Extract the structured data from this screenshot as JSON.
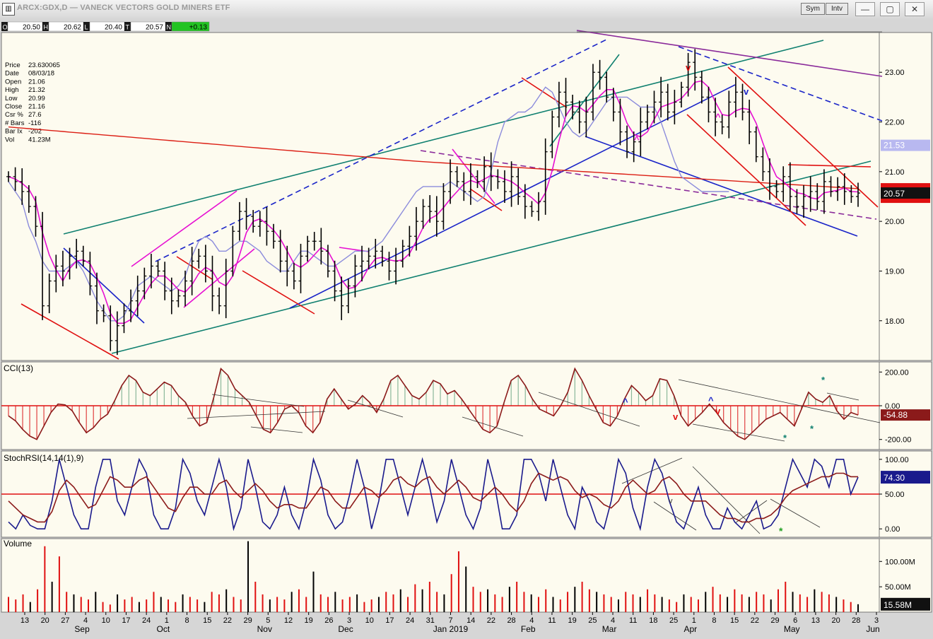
{
  "window": {
    "title": "ARCX:GDX,D — VANECK VECTORS GOLD MINERS ETF",
    "sym_label": "Sym",
    "intv_label": "Intv",
    "minimize_glyph": "—",
    "restore_glyph": "▢",
    "close_glyph": "✕"
  },
  "quote_bar": [
    {
      "key": "O",
      "value": "20.50"
    },
    {
      "key": "H",
      "value": "20.62"
    },
    {
      "key": "L",
      "value": "20.40"
    },
    {
      "key": "T",
      "value": "20.57"
    },
    {
      "key": "N",
      "value": "+0.13"
    }
  ],
  "data_window": [
    {
      "label": "Price",
      "value": "23.630065"
    },
    {
      "label": "Date",
      "value": "08/03/18"
    },
    {
      "label": "Open",
      "value": "21.06"
    },
    {
      "label": "High",
      "value": "21.32"
    },
    {
      "label": "Low",
      "value": "20.99"
    },
    {
      "label": "Close",
      "value": "21.16"
    },
    {
      "label": "Csr %",
      "value": "27.6"
    },
    {
      "label": "# Bars",
      "value": "-116"
    },
    {
      "label": "Bar Ix",
      "value": "-202"
    },
    {
      "label": "Vol",
      "value": "41.23M"
    }
  ],
  "colors": {
    "chart_bg": "#fdfbef",
    "price_bar": "#000000",
    "ma_short": "#e60fd2",
    "ma_mid": "#8c8cdc",
    "ma_long": "#dc1e14",
    "trend_red": "#e01010",
    "trend_blue": "#1a24c8",
    "trend_teal": "#108070",
    "trend_purple": "#8a2a9a",
    "cci_fill_pos": "#8ab89a",
    "cci_fill_neg": "#e04040",
    "cci_line": "#8b1a1a",
    "stoch_k": "#1a1a8c",
    "stoch_d": "#8b1a1a",
    "vol_up": "#000000",
    "vol_down": "#e01010",
    "quote_positive": "#22c322"
  },
  "chart_data": [
    {
      "type": "line",
      "panel": "price",
      "style": "ohlc_bars",
      "ylim": [
        17.2,
        23.8
      ],
      "yticks": [
        "18.00",
        "19.00",
        "20.00",
        "21.00",
        "22.00",
        "23.00"
      ],
      "ytick_values": [
        18,
        19,
        20,
        21,
        22,
        23
      ],
      "series": [
        {
          "name": "",
          "values": [
            20.9,
            20.8,
            20.6,
            20.3,
            19.9,
            18.3,
            18.8,
            19.1,
            19.0,
            19.3,
            19.4,
            19.2,
            18.7,
            18.2,
            18.1,
            17.6,
            17.9,
            18.2,
            18.4,
            18.6,
            18.9,
            19.1,
            19.0,
            18.6,
            18.4,
            18.5,
            18.8,
            19.2,
            19.3,
            19.0,
            18.5,
            18.3,
            19.0,
            19.8,
            20.2,
            20.1,
            19.9,
            20.0,
            19.8,
            19.6,
            19.2,
            19.0,
            18.8,
            19.3,
            19.6,
            19.6,
            19.4,
            19.0,
            18.6,
            18.3,
            18.7,
            19.1,
            19.2,
            19.3,
            19.4,
            19.2,
            19.0,
            19.2,
            19.5,
            19.7,
            20.0,
            20.3,
            20.2,
            20.0,
            20.6,
            21.0,
            20.8,
            20.6,
            20.9,
            20.8,
            21.1,
            20.9,
            20.8,
            20.6,
            20.9,
            20.5,
            20.3,
            20.2,
            20.4,
            21.4,
            22.1,
            22.6,
            22.4,
            22.2,
            22.0,
            22.2,
            23.0,
            22.9,
            22.5,
            22.2,
            21.8,
            21.4,
            21.6,
            22.0,
            22.2,
            22.4,
            22.6,
            22.2,
            22.4,
            22.7,
            23.2,
            22.9,
            22.5,
            22.2,
            22.0,
            21.9,
            22.4,
            22.6,
            22.2,
            21.8,
            21.3,
            21.0,
            20.7,
            20.6,
            20.9,
            20.5,
            20.3,
            20.5,
            20.6,
            20.4,
            20.8,
            20.6,
            20.7,
            20.6,
            20.5,
            20.57
          ]
        },
        {
          "name": "",
          "values": [
            20.8,
            20.6,
            20.4,
            19.9,
            19.6,
            19.2,
            19.0,
            19.0,
            19.0,
            19.1,
            19.2,
            19.0,
            18.7,
            18.4,
            18.2,
            18.0,
            18.0,
            18.1,
            18.4,
            18.7,
            18.8,
            18.9,
            18.8,
            18.7,
            18.6,
            18.7,
            18.9,
            19.3,
            19.6,
            19.7,
            19.6,
            19.4,
            19.4,
            19.5,
            19.6,
            19.6,
            19.5,
            19.4,
            19.2,
            19.1,
            19.0,
            19.0,
            19.2,
            19.4,
            19.4,
            19.3,
            19.2,
            19.1,
            19.1,
            19.2,
            19.3,
            19.4,
            19.4,
            19.4,
            19.5,
            19.6,
            19.8,
            20.0,
            20.2,
            20.4,
            20.6,
            20.7,
            20.7,
            20.7,
            20.7,
            20.8,
            20.7,
            20.6,
            20.5,
            20.4,
            20.5,
            21.0,
            21.6,
            22.0,
            22.1,
            22.2,
            22.2,
            22.3,
            22.5,
            22.7,
            22.6,
            22.3,
            22.0,
            21.8,
            21.7,
            21.8,
            22.0,
            22.2,
            22.4,
            22.5,
            22.5,
            22.5,
            22.4,
            22.3,
            22.3,
            22.3,
            22.0,
            21.6,
            21.2,
            20.9,
            20.8,
            20.7,
            20.6,
            20.6,
            20.6,
            20.6,
            20.6
          ]
        }
      ],
      "annotations": [
        "v",
        "^",
        "^",
        "v"
      ]
    },
    {
      "type": "area",
      "panel": "cci",
      "title": "CCI(13)",
      "ylim": [
        -260,
        260
      ],
      "yticks": [
        "200.00",
        "0.00",
        "-200.00"
      ],
      "ytick_values": [
        200,
        0,
        -200
      ],
      "last_value": "-54.88",
      "series": [
        {
          "name": "",
          "values": [
            -60,
            -90,
            -140,
            -180,
            -200,
            -120,
            -40,
            10,
            5,
            -30,
            -100,
            -160,
            -130,
            -80,
            -50,
            30,
            120,
            180,
            150,
            80,
            60,
            100,
            140,
            120,
            60,
            20,
            -60,
            -120,
            -100,
            50,
            220,
            180,
            100,
            60,
            20,
            -60,
            -140,
            -160,
            -100,
            -20,
            0,
            -40,
            -120,
            -160,
            -100,
            40,
            100,
            40,
            -20,
            10,
            60,
            20,
            -40,
            40,
            150,
            180,
            120,
            60,
            40,
            80,
            150,
            130,
            70,
            90,
            40,
            -20,
            -80,
            -140,
            -160,
            -120,
            20,
            150,
            180,
            120,
            40,
            -20,
            -40,
            -60,
            0,
            80,
            220,
            150,
            60,
            -20,
            -100,
            -120,
            -60,
            40,
            120,
            80,
            30,
            60,
            160,
            150,
            60,
            -60,
            -120,
            -80,
            -40,
            10,
            -40,
            -100,
            -140,
            -180,
            -200,
            -160,
            -120,
            -80,
            -60,
            -40,
            -80,
            -120,
            -20,
            80,
            40,
            20,
            60,
            -30,
            -80,
            -40,
            -54.88
          ]
        }
      ],
      "annotations": [
        "^",
        "v",
        "^",
        "v",
        "*",
        "*",
        "*"
      ]
    },
    {
      "type": "line",
      "panel": "stochrsi",
      "title": "StochRSI(14,14(1),9)",
      "ylim": [
        -12,
        112
      ],
      "yticks": [
        "100.00",
        "50.00",
        "0.00"
      ],
      "ytick_values": [
        100,
        50,
        0
      ],
      "last_value": "74.30",
      "level_line": 50,
      "series": [
        {
          "name": "",
          "values": [
            10,
            0,
            20,
            5,
            0,
            0,
            40,
            100,
            60,
            20,
            0,
            0,
            60,
            100,
            100,
            40,
            20,
            60,
            100,
            80,
            20,
            0,
            0,
            30,
            100,
            80,
            40,
            20,
            60,
            100,
            60,
            0,
            30,
            100,
            60,
            10,
            0,
            20,
            60,
            20,
            0,
            40,
            100,
            70,
            20,
            0,
            10,
            50,
            100,
            60,
            0,
            40,
            100,
            100,
            60,
            20,
            60,
            100,
            60,
            10,
            40,
            100,
            60,
            20,
            0,
            30,
            100,
            60,
            0,
            0,
            20,
            100,
            100,
            80,
            40,
            100,
            60,
            20,
            0,
            60,
            40,
            10,
            0,
            40,
            100,
            80,
            30,
            0,
            60,
            100,
            80,
            40,
            10,
            0,
            30,
            60,
            20,
            0,
            0,
            30,
            10,
            0,
            20,
            40,
            0,
            5,
            20,
            60,
            100,
            80,
            60,
            100,
            90,
            60,
            100,
            100,
            50,
            74.3
          ]
        },
        {
          "name": "",
          "values": [
            40,
            30,
            20,
            15,
            10,
            10,
            25,
            55,
            70,
            60,
            45,
            30,
            35,
            55,
            75,
            70,
            60,
            60,
            70,
            75,
            60,
            45,
            30,
            25,
            45,
            60,
            60,
            50,
            50,
            65,
            70,
            55,
            45,
            55,
            65,
            55,
            40,
            30,
            35,
            35,
            30,
            30,
            45,
            60,
            55,
            40,
            30,
            30,
            45,
            60,
            55,
            45,
            55,
            70,
            75,
            65,
            60,
            70,
            75,
            60,
            50,
            60,
            70,
            60,
            45,
            40,
            50,
            60,
            50,
            35,
            25,
            40,
            65,
            80,
            75,
            70,
            75,
            70,
            55,
            45,
            50,
            45,
            35,
            30,
            40,
            60,
            70,
            60,
            50,
            55,
            70,
            75,
            65,
            50,
            40,
            40,
            40,
            30,
            20,
            15,
            15,
            10,
            10,
            15,
            15,
            20,
            30,
            45,
            55,
            60,
            65,
            70,
            75,
            75,
            80,
            80,
            75,
            75
          ]
        }
      ]
    },
    {
      "type": "bar",
      "panel": "volume",
      "title": "Volume",
      "ylim": [
        0,
        145
      ],
      "yticks": [
        "100.00M",
        "50.00M"
      ],
      "ytick_values": [
        100,
        50
      ],
      "last_value": "15.58M",
      "series": [
        {
          "name": "",
          "values": [
            30,
            25,
            35,
            20,
            45,
            130,
            60,
            110,
            40,
            35,
            30,
            25,
            40,
            20,
            15,
            35,
            25,
            30,
            20,
            25,
            40,
            30,
            25,
            20,
            35,
            30,
            25,
            20,
            40,
            35,
            45,
            30,
            25,
            140,
            60,
            35,
            25,
            30,
            25,
            40,
            45,
            30,
            80,
            35,
            30,
            40,
            25,
            30,
            35,
            20,
            25,
            30,
            40,
            35,
            45,
            30,
            55,
            45,
            60,
            40,
            35,
            75,
            120,
            90,
            50,
            40,
            45,
            35,
            30,
            50,
            60,
            40,
            35,
            30,
            45,
            30,
            25,
            40,
            50,
            60,
            45,
            40,
            35,
            30,
            25,
            40,
            35,
            30,
            45,
            35,
            30,
            25,
            20,
            35,
            30,
            25,
            40,
            50,
            35,
            30,
            45,
            35,
            30,
            40,
            35,
            25,
            45,
            60,
            40,
            35,
            30,
            45,
            40,
            35,
            30,
            25,
            20,
            15.58
          ]
        }
      ]
    }
  ],
  "x_axis": {
    "day_labels": [
      "13",
      "20",
      "27",
      "4",
      "10",
      "17",
      "24",
      "1",
      "8",
      "15",
      "22",
      "29",
      "5",
      "12",
      "19",
      "26",
      "3",
      "10",
      "17",
      "24",
      "31",
      "7",
      "14",
      "22",
      "28",
      "4",
      "11",
      "19",
      "25",
      "4",
      "11",
      "18",
      "25",
      "1",
      "8",
      "15",
      "22",
      "29",
      "6",
      "13",
      "20",
      "28",
      "3"
    ],
    "month_labels": [
      "Sep",
      "Oct",
      "Nov",
      "Dec",
      "Jan 2019",
      "Feb",
      "Mar",
      "Apr",
      "May",
      "Jun"
    ]
  },
  "last_price_labels": {
    "price": "20.57",
    "ma_mid": "21.53"
  }
}
